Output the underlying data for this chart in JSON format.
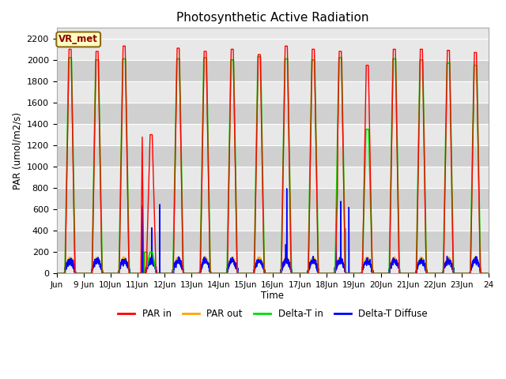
{
  "title": "Photosynthetic Active Radiation",
  "ylabel": "PAR (umol/m2/s)",
  "xlabel": "Time",
  "xlim_days": [
    8,
    24
  ],
  "ylim": [
    0,
    2300
  ],
  "yticks": [
    0,
    200,
    400,
    600,
    800,
    1000,
    1200,
    1400,
    1600,
    1800,
    2000,
    2200
  ],
  "xtick_labels": [
    "Jun",
    "9 Jun",
    "10Jun",
    "11Jun",
    "12Jun",
    "13Jun",
    "14Jun",
    "15Jun",
    "16Jun",
    "17Jun",
    "18Jun",
    "19Jun",
    "20Jun",
    "21Jun",
    "22Jun",
    "23Jun",
    "24"
  ],
  "xtick_positions": [
    8,
    9,
    10,
    11,
    12,
    13,
    14,
    15,
    16,
    17,
    18,
    19,
    20,
    21,
    22,
    23,
    24
  ],
  "legend_items": [
    "PAR in",
    "PAR out",
    "Delta-T in",
    "Delta-T Diffuse"
  ],
  "legend_colors": [
    "#ff0000",
    "#ffa500",
    "#00dd00",
    "#0000ff"
  ],
  "station_label": "VR_met",
  "bg_color_light": "#e8e8e8",
  "bg_color_dark": "#d0d0d0",
  "fig_color": "#ffffff",
  "par_in_peak": 2100,
  "par_out_peak": 150,
  "delta_t_peak": 2000,
  "line_width": 1.0,
  "spike_centers": [
    11.18,
    11.52,
    11.82,
    16.48,
    16.52,
    18.35,
    18.52,
    18.68,
    18.82
  ],
  "spike_heights": [
    700,
    400,
    650,
    180,
    720,
    420,
    550,
    380,
    740
  ],
  "spike_widths": [
    0.004,
    0.003,
    0.004,
    0.003,
    0.004,
    0.003,
    0.004,
    0.003,
    0.004
  ],
  "par_in_special_day": 11.0,
  "par_in_special_peak": 1300,
  "delta_t_special_day": 18.3,
  "delta_t_special_peak": 1500
}
